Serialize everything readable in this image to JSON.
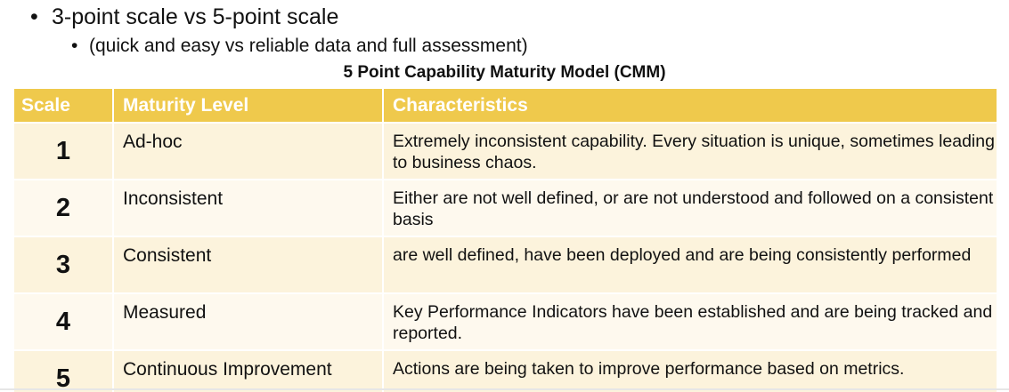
{
  "bullets": {
    "main": "3-point scale vs 5-point scale",
    "sub": "(quick and easy vs reliable data and full assessment)"
  },
  "table": {
    "title": "5 Point Capability Maturity Model (CMM)",
    "headers": {
      "scale": "Scale",
      "level": "Maturity Level",
      "characteristics": "Characteristics"
    },
    "rows": [
      {
        "scale": "1",
        "level": "Ad-hoc",
        "characteristics": "Extremely inconsistent capability. Every situation is unique, sometimes leading to business chaos."
      },
      {
        "scale": "2",
        "level": "Inconsistent",
        "characteristics": "Either are not well defined, or are not understood and followed on a consistent basis"
      },
      {
        "scale": "3",
        "level": "Consistent",
        "characteristics": "are well defined, have been deployed and are being consistently performed"
      },
      {
        "scale": "4",
        "level": "Measured",
        "characteristics": "Key Performance Indicators have been established and are being tracked and reported."
      },
      {
        "scale": "5",
        "level": "Continuous Improvement",
        "characteristics": "Actions are being taken to improve performance based on metrics."
      }
    ]
  },
  "colors": {
    "header_bg": "#efc94c",
    "row_odd": "#fcf3dc",
    "row_even": "#fef9ee"
  }
}
